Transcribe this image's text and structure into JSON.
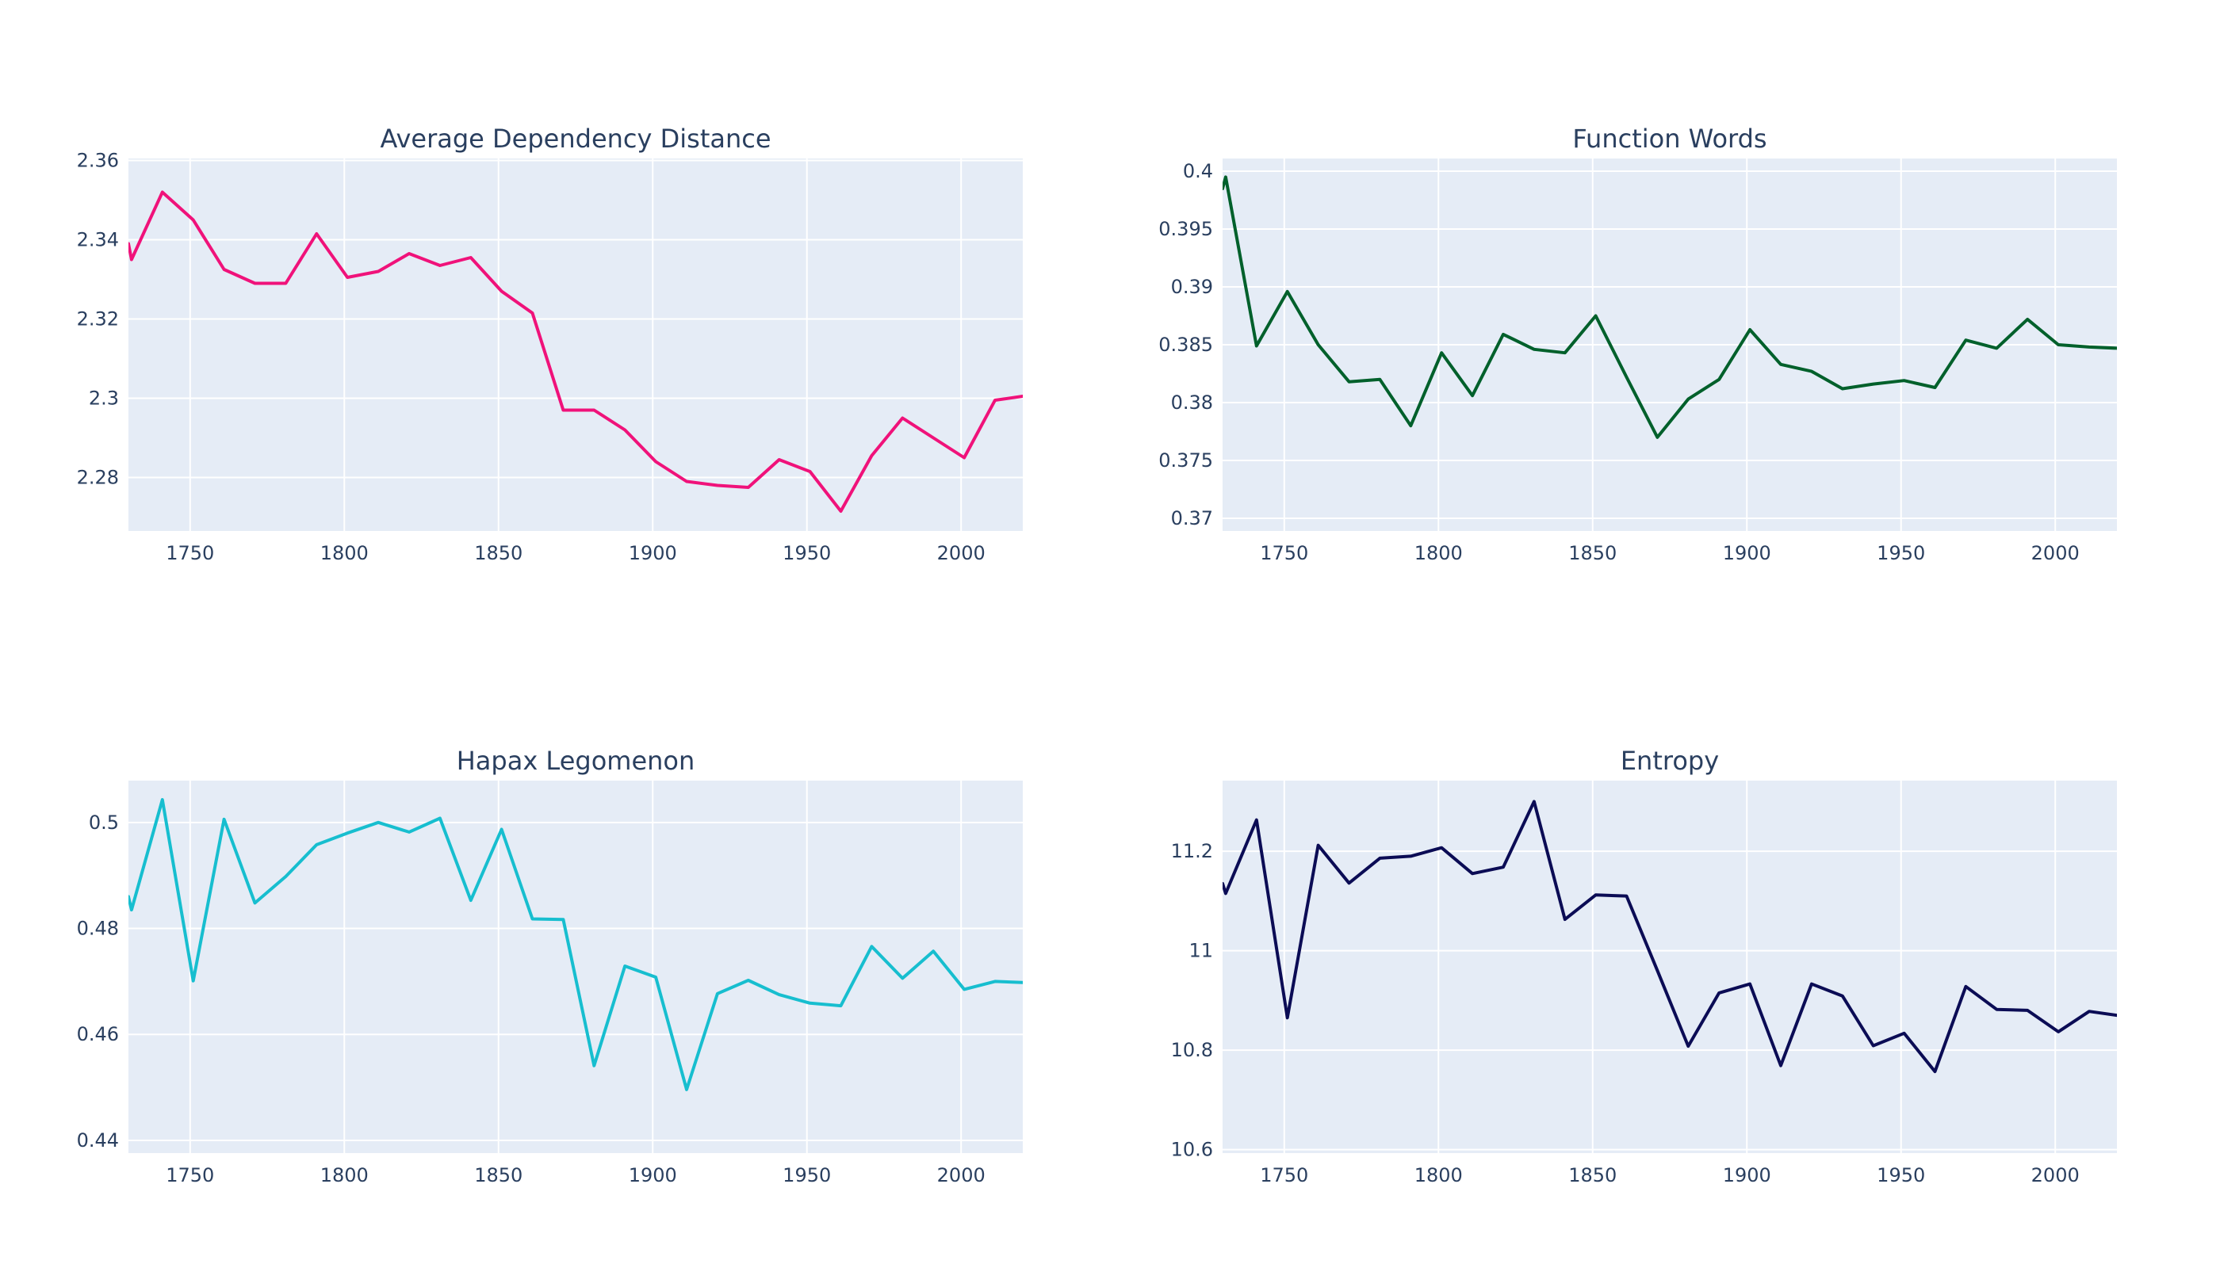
{
  "chart_data": [
    {
      "type": "line",
      "title": "Average Dependency Distance",
      "color": "#f0127a",
      "xlim": [
        1730,
        2020
      ],
      "ylim": [
        2.2665,
        2.3605
      ],
      "xticks": [
        1750,
        1800,
        1850,
        1900,
        1950,
        2000
      ],
      "yticks": [
        2.28,
        2.3,
        2.32,
        2.34,
        2.36
      ],
      "ytick_labels": [
        "2.28",
        "2.3",
        "2.32",
        "2.34",
        "2.36"
      ],
      "x": [
        1730,
        1731,
        1741,
        1751,
        1761,
        1771,
        1781,
        1791,
        1801,
        1811,
        1821,
        1831,
        1841,
        1851,
        1861,
        1871,
        1881,
        1891,
        1901,
        1911,
        1921,
        1931,
        1941,
        1951,
        1961,
        1971,
        1981,
        1991,
        2001,
        2011,
        2020
      ],
      "y": [
        2.339,
        2.335,
        2.352,
        2.345,
        2.3325,
        2.329,
        2.329,
        2.3415,
        2.3305,
        2.332,
        2.3365,
        2.3335,
        2.3355,
        2.327,
        2.3215,
        2.297,
        2.297,
        2.292,
        2.284,
        2.279,
        2.278,
        2.2775,
        2.2845,
        2.2815,
        2.2715,
        2.2855,
        2.295,
        2.29,
        2.285,
        2.2995,
        2.3005
      ]
    },
    {
      "type": "line",
      "title": "Function Words",
      "color": "#00602b",
      "xlim": [
        1730,
        2020
      ],
      "ylim": [
        0.3689,
        0.4011
      ],
      "xticks": [
        1750,
        1800,
        1850,
        1900,
        1950,
        2000
      ],
      "yticks": [
        0.37,
        0.375,
        0.38,
        0.385,
        0.39,
        0.395,
        0.4
      ],
      "ytick_labels": [
        "0.37",
        "0.375",
        "0.38",
        "0.385",
        "0.39",
        "0.395",
        "0.4"
      ],
      "x": [
        1730,
        1731,
        1741,
        1751,
        1761,
        1771,
        1781,
        1791,
        1801,
        1811,
        1821,
        1831,
        1841,
        1851,
        1861,
        1871,
        1881,
        1891,
        1901,
        1911,
        1921,
        1931,
        1941,
        1951,
        1961,
        1971,
        1981,
        1991,
        2001,
        2011,
        2020
      ],
      "y": [
        0.3985,
        0.3995,
        0.3849,
        0.3896,
        0.385,
        0.3818,
        0.382,
        0.378,
        0.3843,
        0.3806,
        0.3859,
        0.3846,
        0.3843,
        0.3875,
        0.3822,
        0.377,
        0.3803,
        0.382,
        0.3863,
        0.3833,
        0.3827,
        0.3812,
        0.3816,
        0.3819,
        0.3813,
        0.3854,
        0.3847,
        0.3872,
        0.385,
        0.3848,
        0.3847
      ]
    },
    {
      "type": "line",
      "title": "Hapax Legomenon",
      "color": "#17becf",
      "xlim": [
        1730,
        2020
      ],
      "ylim": [
        0.4376,
        0.5079
      ],
      "xticks": [
        1750,
        1800,
        1850,
        1900,
        1950,
        2000
      ],
      "yticks": [
        0.44,
        0.46,
        0.48,
        0.5
      ],
      "ytick_labels": [
        "0.44",
        "0.46",
        "0.48",
        "0.5"
      ],
      "x": [
        1730,
        1731,
        1741,
        1751,
        1761,
        1771,
        1781,
        1791,
        1801,
        1811,
        1821,
        1831,
        1841,
        1851,
        1861,
        1871,
        1881,
        1891,
        1901,
        1911,
        1921,
        1931,
        1941,
        1951,
        1961,
        1971,
        1981,
        1991,
        2001,
        2011,
        2020
      ],
      "y": [
        0.486,
        0.4835,
        0.5043,
        0.4701,
        0.5006,
        0.4848,
        0.4898,
        0.4958,
        0.498,
        0.5,
        0.4982,
        0.5008,
        0.4853,
        0.4987,
        0.4818,
        0.4817,
        0.4541,
        0.4729,
        0.4708,
        0.4496,
        0.4677,
        0.4702,
        0.4675,
        0.4659,
        0.4654,
        0.4766,
        0.4706,
        0.4757,
        0.4685,
        0.47,
        0.4698
      ]
    },
    {
      "type": "line",
      "title": "Entropy",
      "color": "#0b0c55",
      "xlim": [
        1730,
        2020
      ],
      "ylim": [
        10.593,
        11.342
      ],
      "xticks": [
        1750,
        1800,
        1850,
        1900,
        1950,
        2000
      ],
      "yticks": [
        10.6,
        10.8,
        11,
        11.2
      ],
      "ytick_labels": [
        "10.6",
        "10.8",
        "11",
        "11.2"
      ],
      "x": [
        1730,
        1731,
        1741,
        1751,
        1761,
        1771,
        1781,
        1791,
        1801,
        1811,
        1821,
        1831,
        1841,
        1851,
        1861,
        1871,
        1881,
        1891,
        1901,
        1911,
        1921,
        1931,
        1941,
        1951,
        1961,
        1971,
        1981,
        1991,
        2001,
        2011,
        2020
      ],
      "y": [
        11.135,
        11.115,
        11.263,
        10.865,
        11.212,
        11.136,
        11.186,
        11.19,
        11.207,
        11.155,
        11.168,
        11.3,
        11.063,
        11.112,
        11.11,
        10.96,
        10.808,
        10.915,
        10.933,
        10.769,
        10.933,
        10.909,
        10.809,
        10.834,
        10.757,
        10.928,
        10.882,
        10.88,
        10.837,
        10.878,
        10.87
      ]
    }
  ]
}
